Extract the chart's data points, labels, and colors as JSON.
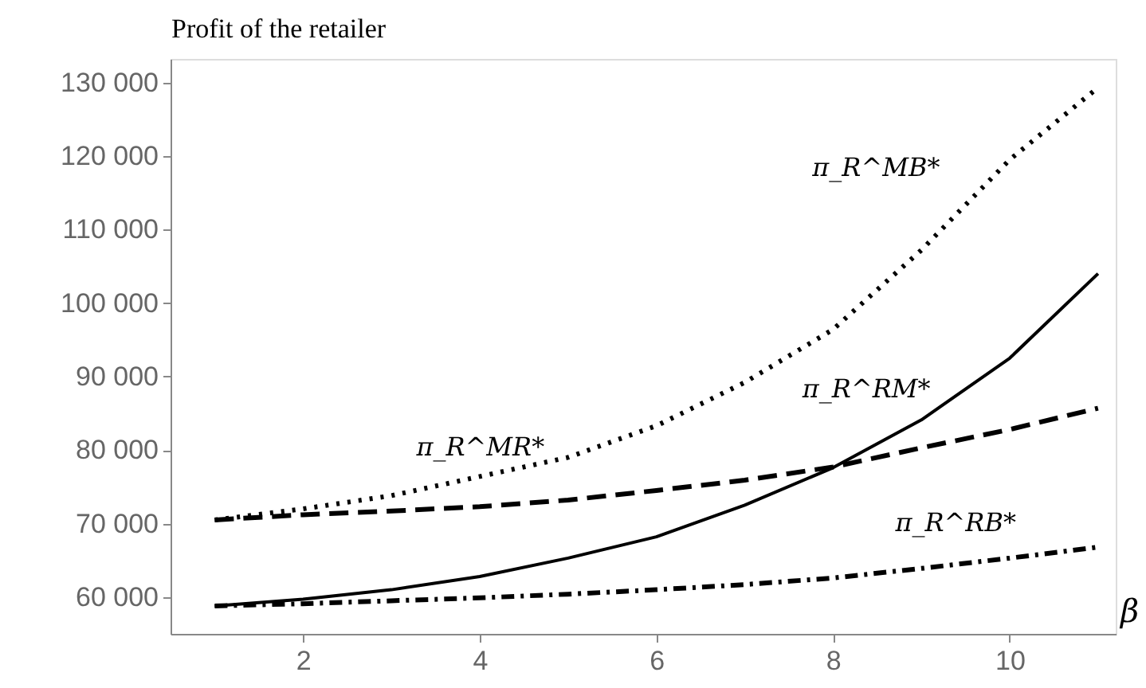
{
  "chart_data": {
    "type": "line",
    "ylabel": "Profit of the retailer",
    "xlabel": "β",
    "x": [
      1,
      2,
      3,
      4,
      5,
      6,
      7,
      8,
      9,
      10,
      11
    ],
    "series": [
      {
        "color": "#000000",
        "line_style": "dotted",
        "values": [
          70500,
          72000,
          73800,
          76400,
          79000,
          83300,
          89200,
          96400,
          107200,
          119500,
          129300
        ]
      },
      {
        "color": "#000000",
        "line_style": "solid",
        "values": [
          58800,
          59700,
          61000,
          62800,
          65300,
          68200,
          72500,
          77600,
          84100,
          92500,
          104000
        ]
      },
      {
        "color": "#000000",
        "line_style": "dashed",
        "values": [
          70500,
          71200,
          71700,
          72300,
          73200,
          74500,
          75900,
          77700,
          80300,
          82800,
          85700
        ]
      },
      {
        "color": "#000000",
        "line_style": "dashdot",
        "values": [
          58800,
          59100,
          59500,
          59900,
          60400,
          61000,
          61700,
          62600,
          63900,
          65300,
          66800
        ]
      }
    ],
    "xlim": [
      0.5,
      11.2
    ],
    "ylim": [
      55000,
      133200
    ],
    "xticks": [
      2,
      4,
      6,
      8,
      10
    ],
    "yticks": [
      {
        "value": 60000,
        "label": "60 000"
      },
      {
        "value": 70000,
        "label": "70 000"
      },
      {
        "value": 80000,
        "label": "80 000"
      },
      {
        "value": 90000,
        "label": "90 000"
      },
      {
        "value": 100000,
        "label": "100 000"
      },
      {
        "value": 110000,
        "label": "110 000"
      },
      {
        "value": 120000,
        "label": "120 000"
      },
      {
        "value": 130000,
        "label": "130 000"
      }
    ],
    "annotations": [
      {
        "text": "π_R^MB*",
        "x": 9.3,
        "y": 111900
      },
      {
        "text": "π_R^MR*",
        "x": 5.0,
        "y": 72800
      },
      {
        "text": "π_R^RM*",
        "x": 9.1,
        "y": 85000
      },
      {
        "text": "π_R^RB*",
        "x": 10.2,
        "y": 65700
      }
    ],
    "grid": false
  }
}
